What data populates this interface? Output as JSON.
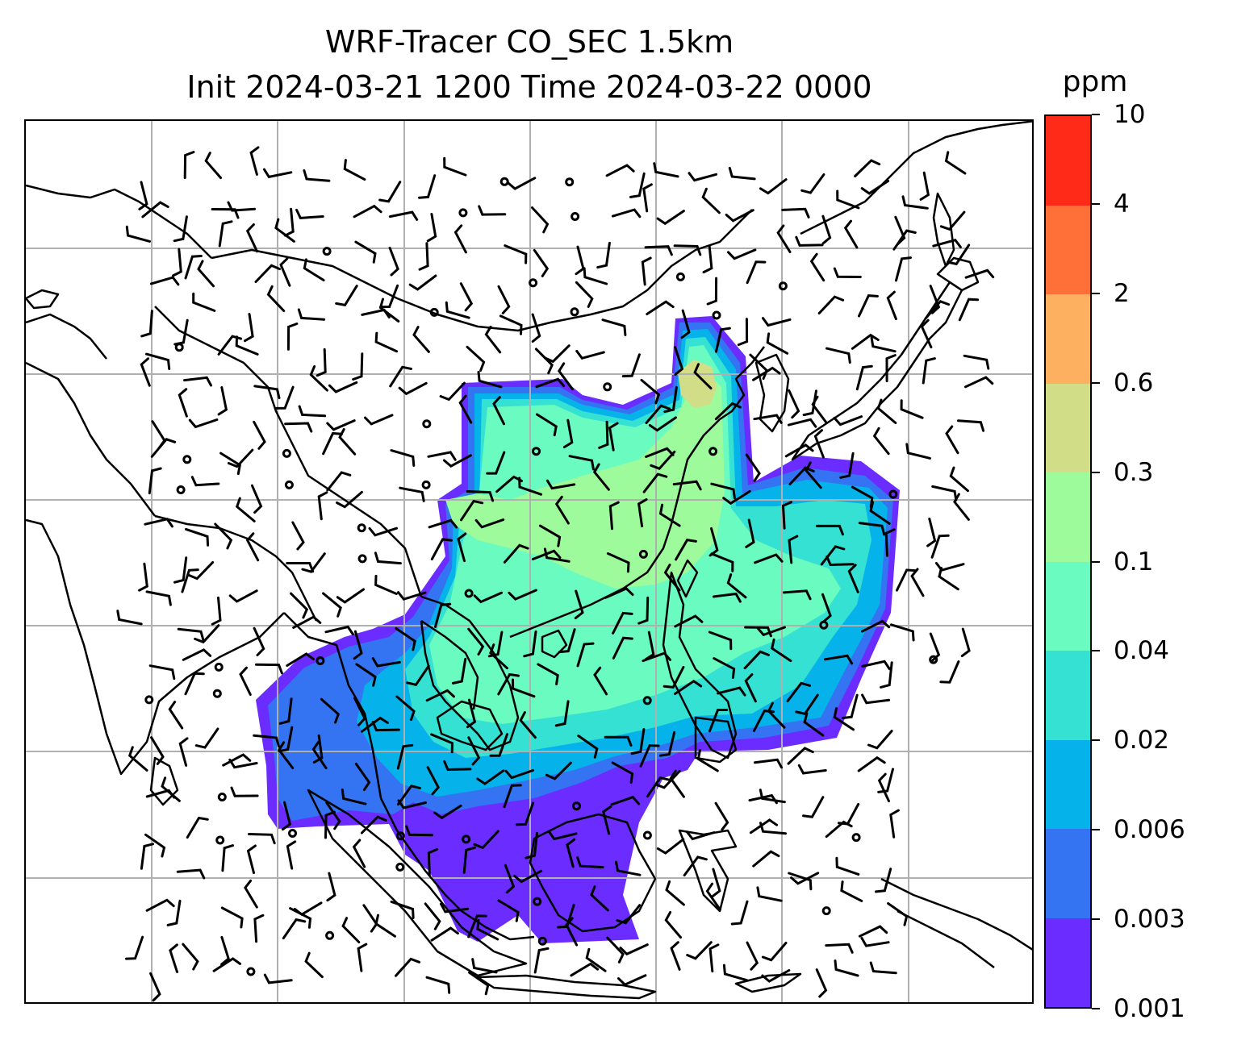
{
  "figure": {
    "title_line1": "WRF-Tracer CO_SEC 1.5km",
    "title_line2": "Init 2024-03-21 1200 Time 2024-03-22 0000"
  },
  "colorbar": {
    "unit": "ppm",
    "levels": [
      "0.001",
      "0.003",
      "0.006",
      "0.02",
      "0.04",
      "0.1",
      "0.3",
      "0.6",
      "2",
      "4",
      "10"
    ],
    "colors": [
      "#6a2cff",
      "#3473f2",
      "#06b2ea",
      "#35e1d2",
      "#6afbc0",
      "#9dfb9b",
      "#d2de87",
      "#fdb060",
      "#ff7038",
      "#ff2a18"
    ]
  },
  "map": {
    "gridlines": true,
    "coastline_color": "#000000",
    "gridline_color": "#b0b0b0",
    "barb_color": "#000000",
    "plume_levels": [
      "0.001-0.003",
      "0.003-0.006",
      "0.006-0.02",
      "0.02-0.04",
      "0.04-0.1",
      "0.1-0.3",
      "0.3-0.6"
    ]
  }
}
